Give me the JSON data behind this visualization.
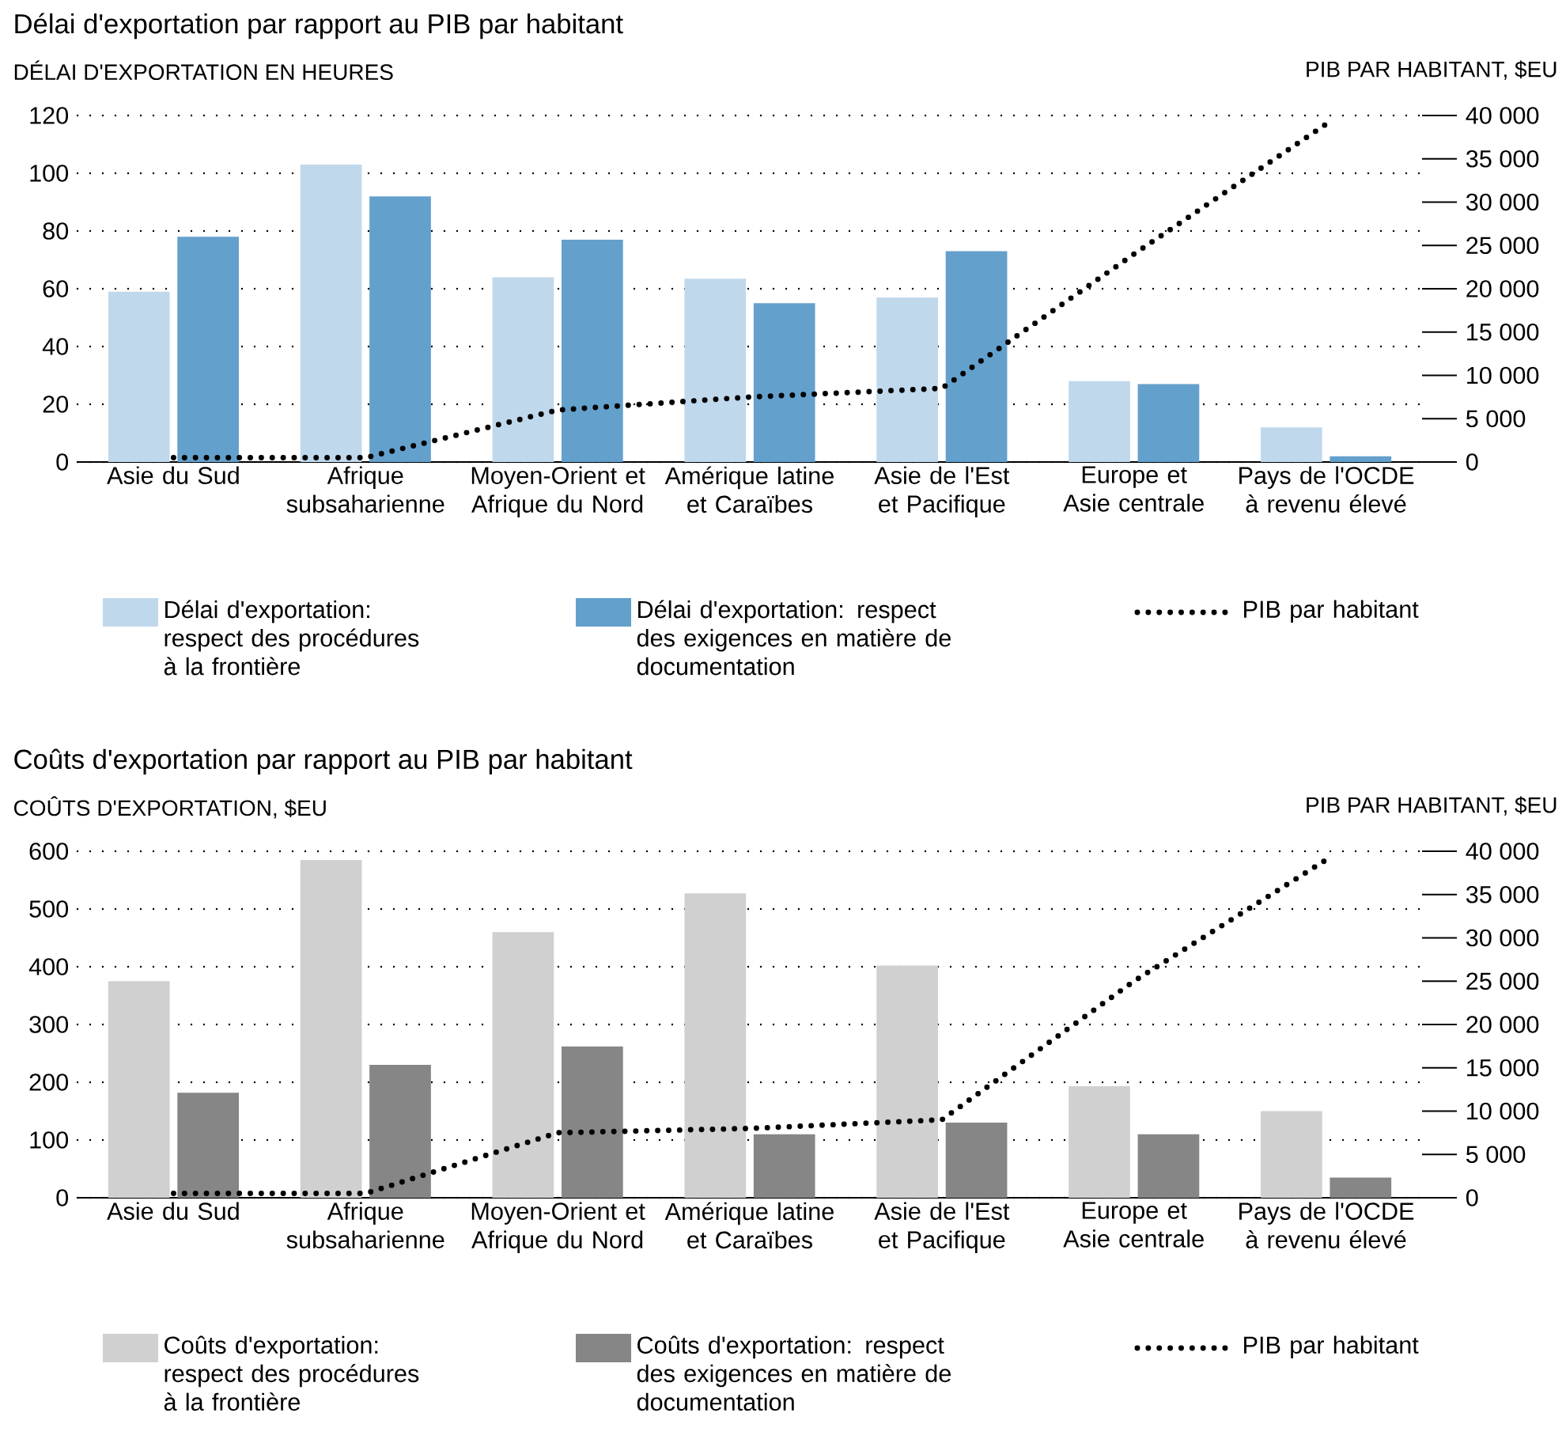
{
  "chart_data": [
    {
      "type": "bar",
      "title": "Délai d'exportation par rapport au PIB par habitant",
      "ylabel": "DÉLAI D'EXPORTATION EN HEURES",
      "y2label": "PIB PAR HABITANT, $EU",
      "categories": [
        "Asie du Sud",
        "Afrique subsaharienne",
        "Moyen-Orient et Afrique du Nord",
        "Amérique latine et Caraïbes",
        "Asie de l'Est et Pacifique",
        "Europe et Asie centrale",
        "Pays de l'OCDE à revenu élevé"
      ],
      "series": [
        {
          "name": "Délai d'exportation: respect des procédures à la frontière",
          "color": "#c0d8ec",
          "values": [
            59,
            103,
            64,
            63.5,
            57,
            28,
            12
          ]
        },
        {
          "name": "Délai d'exportation: respect des exigences en matière de documentation",
          "color": "#64a0cc",
          "values": [
            78,
            92,
            77,
            55,
            73,
            27,
            2
          ]
        },
        {
          "name": "PIB par habitant",
          "type": "line",
          "axis": "y2",
          "color": "#000000",
          "line_style": "dotted",
          "values": [
            500,
            500,
            6000,
            7500,
            8500,
            24000,
            39000
          ]
        }
      ],
      "ylim": [
        0,
        120
      ],
      "yticks": [
        0,
        20,
        40,
        60,
        80,
        100,
        120
      ],
      "y2lim": [
        0,
        40000
      ],
      "y2ticks": [
        0,
        {
          "value": 5000,
          "label": "5 000"
        },
        {
          "value": 10000,
          "label": "10 000"
        },
        {
          "value": 15000,
          "label": "15 000"
        },
        {
          "value": 20000,
          "label": "20 000"
        },
        {
          "value": 25000,
          "label": "25 000"
        },
        {
          "value": 30000,
          "label": "30 000"
        },
        {
          "value": 35000,
          "label": "35 000"
        },
        {
          "value": 40000,
          "label": "40 000"
        }
      ],
      "grid": "y",
      "legend": "bottom"
    },
    {
      "type": "bar",
      "title": "Coûts d'exportation par rapport au PIB par habitant",
      "ylabel": "COÛTS D'EXPORTATION, $EU",
      "y2label": "PIB PAR HABITANT, $EU",
      "categories": [
        "Asie du Sud",
        "Afrique subsaharienne",
        "Moyen-Orient et Afrique du Nord",
        "Amérique latine et Caraïbes",
        "Asie de l'Est et Pacifique",
        "Europe et Asie centrale",
        "Pays de l'OCDE à revenu élevé"
      ],
      "series": [
        {
          "name": "Coûts d'exportation: respect des procédures à la frontière",
          "color": "#d0d0d0",
          "values": [
            375,
            585,
            460,
            527,
            402,
            193,
            150
          ]
        },
        {
          "name": "Coûts d'exportation: respect des exigences en matière de documentation",
          "color": "#868686",
          "values": [
            182,
            230,
            262,
            110,
            130,
            110,
            35
          ]
        },
        {
          "name": "PIB par habitant",
          "type": "line",
          "axis": "y2",
          "color": "#000000",
          "line_style": "dotted",
          "values": [
            500,
            500,
            7500,
            8000,
            9000,
            25000,
            39000
          ]
        }
      ],
      "ylim": [
        0,
        600
      ],
      "yticks": [
        0,
        100,
        200,
        300,
        400,
        500,
        600
      ],
      "y2lim": [
        0,
        40000
      ],
      "y2ticks": [
        0,
        {
          "value": 5000,
          "label": "5 000"
        },
        {
          "value": 10000,
          "label": "10 000"
        },
        {
          "value": 15000,
          "label": "15 000"
        },
        {
          "value": 20000,
          "label": "20 000"
        },
        {
          "value": 25000,
          "label": "25 000"
        },
        {
          "value": 30000,
          "label": "30 000"
        },
        {
          "value": 35000,
          "label": "35 000"
        },
        {
          "value": 40000,
          "label": "40 000"
        }
      ],
      "grid": "y",
      "legend": "bottom"
    }
  ]
}
